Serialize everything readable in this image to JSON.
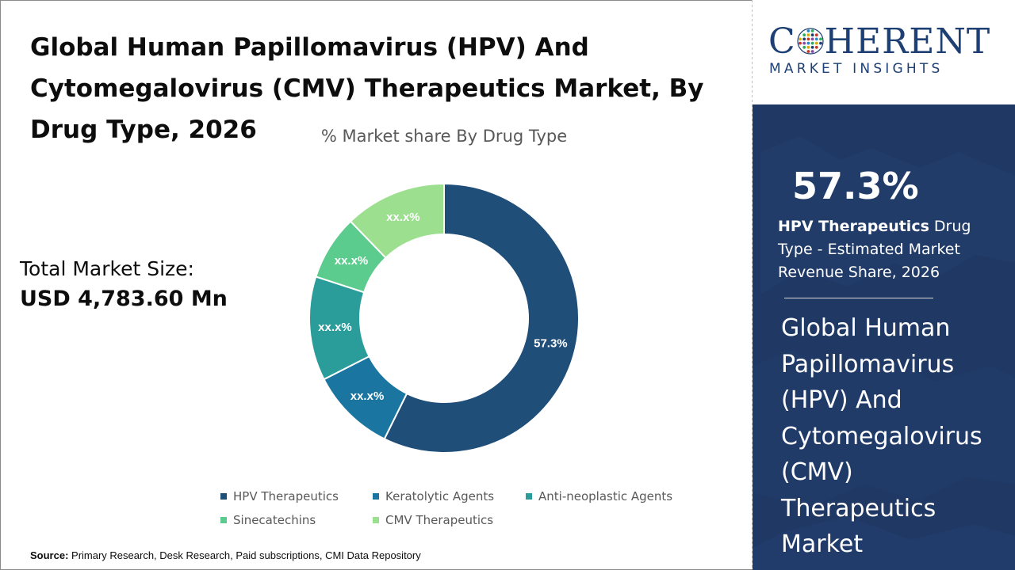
{
  "title": "Global Human Papillomavirus (HPV) And Cytomegalovirus (CMV) Therapeutics Market, By Drug Type, 2026",
  "total_market": {
    "label": "Total Market Size:",
    "value": "USD 4,783.60 Mn"
  },
  "source": {
    "label": "Source:",
    "text": "Primary Research, Desk Research, Paid subscriptions, CMI Data Repository"
  },
  "logo": {
    "word_start": "C",
    "word_end": "HERENT",
    "subtitle": "MARKET INSIGHTS"
  },
  "side_panel": {
    "stat": "57.3%",
    "stat_bold": "HPV Therapeutics",
    "stat_rest": " Drug Type - Estimated Market Revenue Share, 2026",
    "heading": "Global Human Papillomavirus (HPV) And Cytomegalovirus (CMV) Therapeutics Market"
  },
  "colors": {
    "panel_bg": "#1f3864",
    "hpv": "#1f4e79",
    "keratolytic": "#1b75a1",
    "antineoplastic": "#2a9d9a",
    "sinecatechins": "#5ccc8e",
    "cmv": "#9bdf8f"
  },
  "chart_data": {
    "type": "pie",
    "title": "% Market share By Drug Type",
    "donut": true,
    "categories": [
      "HPV Therapeutics",
      "Keratolytic Agents",
      "Anti-neoplastic Agents",
      "Sinecatechins",
      "CMV Therapeutics"
    ],
    "values": [
      57.3,
      10.2,
      12.5,
      7.8,
      12.2
    ],
    "labels": [
      "57.3%",
      "xx.x%",
      "xx.x%",
      "xx.x%",
      "xx.x%"
    ],
    "colors": [
      "#1f4e79",
      "#1b75a1",
      "#2a9d9a",
      "#5ccc8e",
      "#9bdf8f"
    ],
    "legend_position": "bottom"
  }
}
